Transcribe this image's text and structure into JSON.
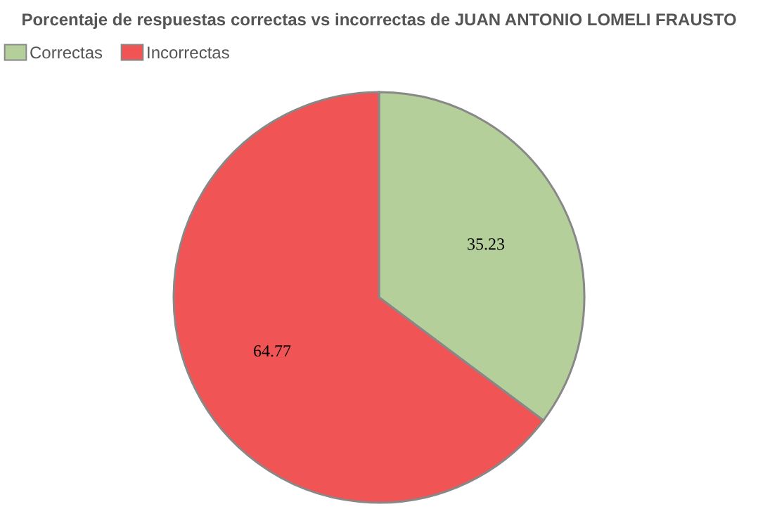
{
  "chart_data": {
    "type": "pie",
    "title": "Porcentaje de respuestas correctas vs incorrectas de JUAN ANTONIO LOMELI FRAUSTO",
    "categories": [
      "Correctas",
      "Incorrectas"
    ],
    "values": [
      35.23,
      64.77
    ],
    "colors": [
      "#b5cf9a",
      "#f05454"
    ],
    "data_labels": true,
    "legend": "top"
  }
}
